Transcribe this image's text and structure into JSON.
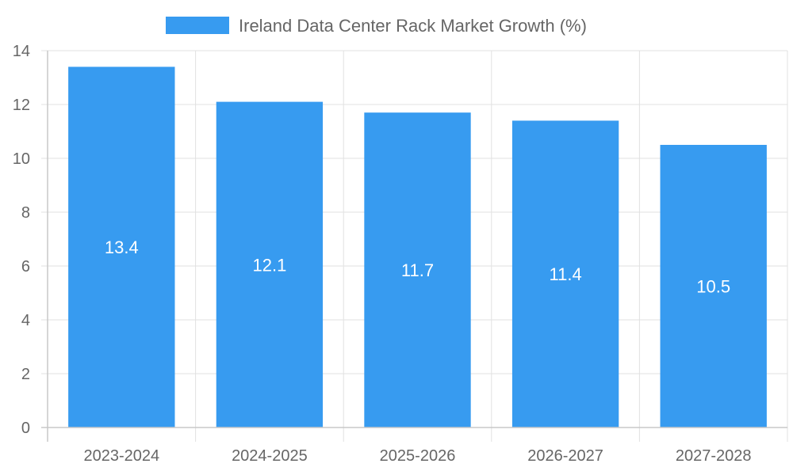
{
  "chart_data": {
    "type": "bar",
    "categories": [
      "2023-2024",
      "2024-2025",
      "2025-2026",
      "2026-2027",
      "2027-2028"
    ],
    "series": [
      {
        "name": "Ireland Data Center Rack Market  Growth (%)",
        "values": [
          13.4,
          12.1,
          11.7,
          11.4,
          10.5
        ]
      }
    ],
    "ylim": [
      0,
      14
    ],
    "yticks": [
      0,
      2,
      4,
      6,
      8,
      10,
      12,
      14
    ],
    "grid": true,
    "legend_position": "top",
    "data_labels": true,
    "bar_color": "#379bf0",
    "grid_color": "#e1e1e1",
    "axis_color": "#c8c8c8",
    "text_color": "#666666",
    "label_color": "#ffffff"
  }
}
